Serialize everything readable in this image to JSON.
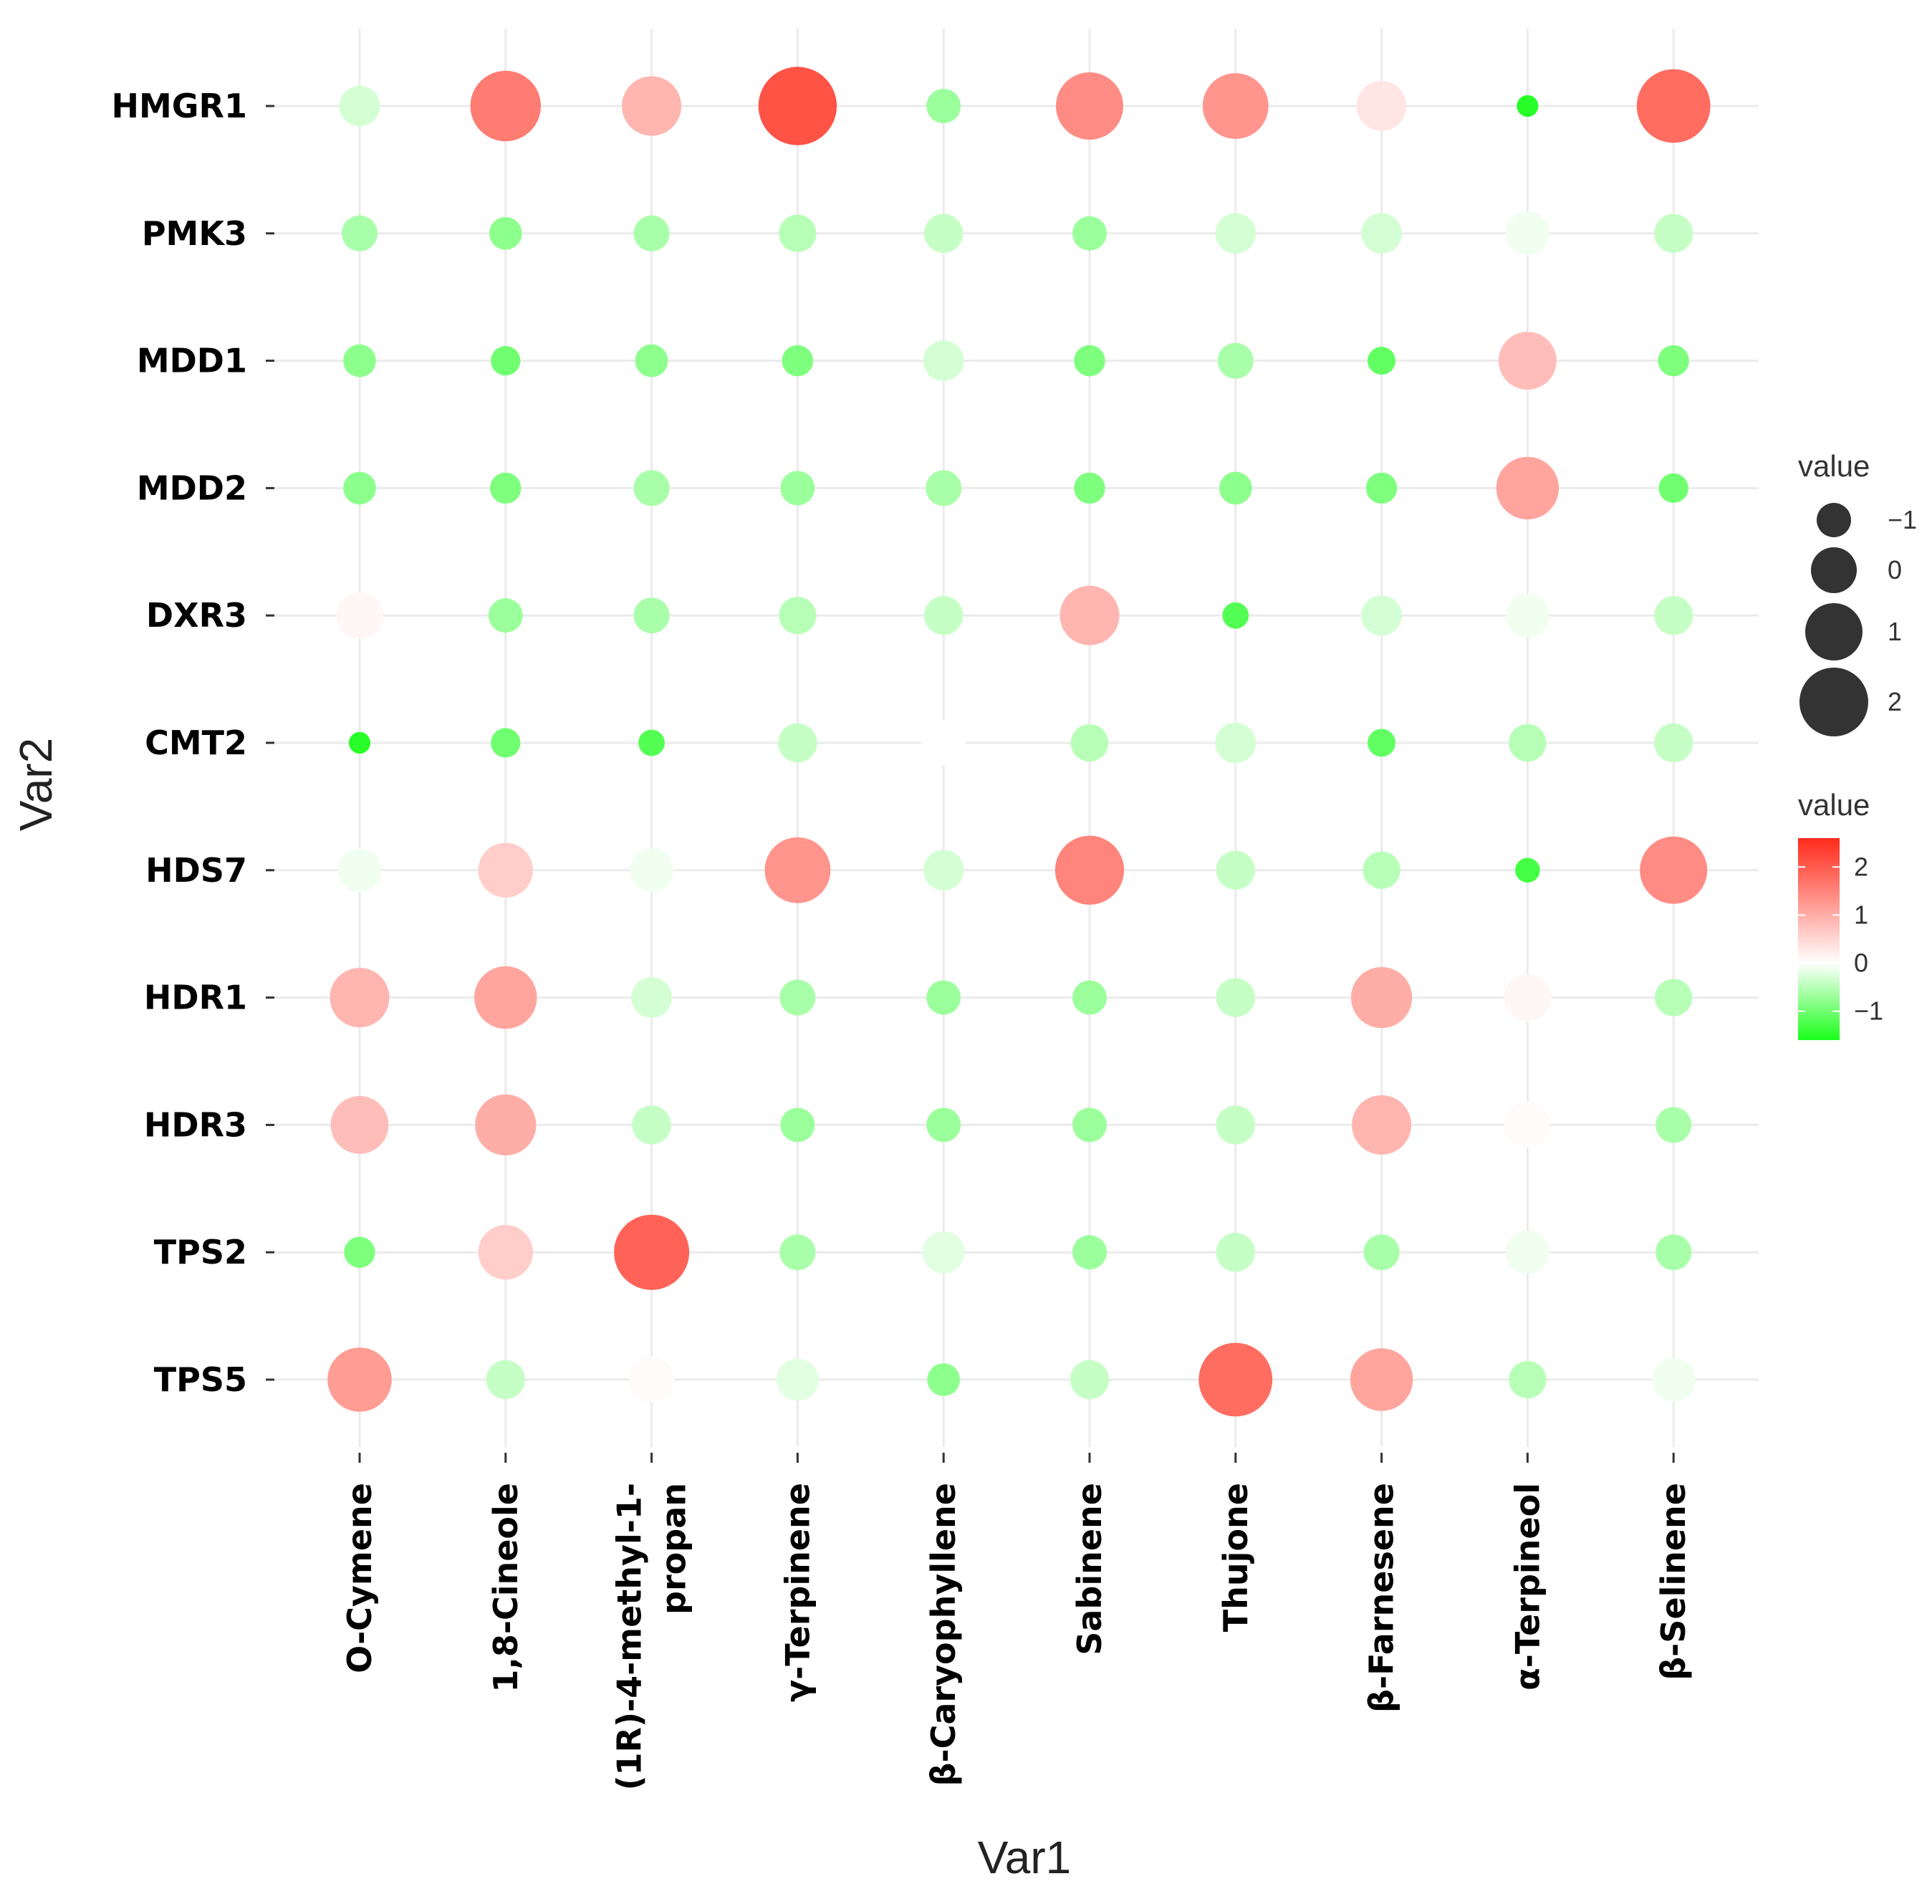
{
  "chart_data": {
    "type": "scatter",
    "subtype": "bubble-matrix",
    "xlabel": "Var1",
    "ylabel": "Var2",
    "x_categories": [
      "O-Cymene",
      "1,8-Cineole",
      "(1R)-4-methyl-1-propan",
      "γ-Terpinene",
      "β-Caryophyllene",
      "Sabinene",
      "Thujone",
      "β-Farnesene",
      "α-Terpineol",
      "β-Selinene"
    ],
    "x_labels_display": [
      [
        "O-Cymene"
      ],
      [
        "1,8-Cineole"
      ],
      [
        "(1R)-4-methyl-1-",
        "propan"
      ],
      [
        "γ-Terpinene"
      ],
      [
        "β-Caryophyllene"
      ],
      [
        "Sabinene"
      ],
      [
        "Thujone"
      ],
      [
        "β-Farnesene"
      ],
      [
        "α-Terpineol"
      ],
      [
        "β-Selinene"
      ]
    ],
    "y_categories": [
      "HMGR1",
      "PMK3",
      "MDD1",
      "MDD2",
      "DXR3",
      "CMT2",
      "HDS7",
      "HDR1",
      "HDR3",
      "TPS2",
      "TPS5"
    ],
    "values": [
      [
        -0.3,
        1.6,
        0.9,
        2.1,
        -0.7,
        1.4,
        1.3,
        0.3,
        -1.5,
        1.8
      ],
      [
        -0.6,
        -0.8,
        -0.6,
        -0.5,
        -0.4,
        -0.7,
        -0.3,
        -0.3,
        -0.1,
        -0.4
      ],
      [
        -0.8,
        -1.0,
        -0.8,
        -0.9,
        -0.3,
        -0.9,
        -0.6,
        -1.1,
        0.8,
        -0.9
      ],
      [
        -0.8,
        -0.9,
        -0.6,
        -0.7,
        -0.6,
        -0.9,
        -0.8,
        -0.9,
        1.1,
        -1.0
      ],
      [
        0.1,
        -0.7,
        -0.6,
        -0.5,
        -0.4,
        0.9,
        -1.2,
        -0.3,
        -0.1,
        -0.4
      ],
      [
        -1.5,
        -1.0,
        -1.2,
        -0.4,
        0.0,
        -0.5,
        -0.3,
        -1.1,
        -0.5,
        -0.4
      ],
      [
        -0.1,
        0.6,
        -0.1,
        1.3,
        -0.3,
        1.5,
        -0.4,
        -0.5,
        -1.3,
        1.4
      ],
      [
        0.9,
        1.1,
        -0.3,
        -0.6,
        -0.7,
        -0.7,
        -0.4,
        1.0,
        0.1,
        -0.5
      ],
      [
        0.8,
        1.0,
        -0.4,
        -0.7,
        -0.7,
        -0.7,
        -0.4,
        0.9,
        0.05,
        -0.6
      ],
      [
        -0.9,
        0.6,
        1.9,
        -0.6,
        -0.2,
        -0.7,
        -0.4,
        -0.6,
        -0.1,
        -0.6
      ],
      [
        1.2,
        -0.4,
        0.05,
        -0.2,
        -0.8,
        -0.4,
        1.8,
        1.1,
        -0.5,
        -0.1
      ]
    ],
    "size_legend": {
      "title": "value",
      "breaks": [
        "−1",
        "0",
        "1",
        "2"
      ],
      "break_values": [
        -1,
        0,
        1,
        2
      ]
    },
    "color_legend": {
      "title": "value",
      "breaks": [
        "2",
        "1",
        "0",
        "−1"
      ],
      "break_values": [
        2,
        1,
        0,
        -1
      ],
      "low_color": "#1aff1a",
      "mid_color": "#ffffff",
      "high_color": "#ff2a1a",
      "range": [
        -1.6,
        2.6
      ]
    },
    "grid": true,
    "legend_position": "right"
  }
}
